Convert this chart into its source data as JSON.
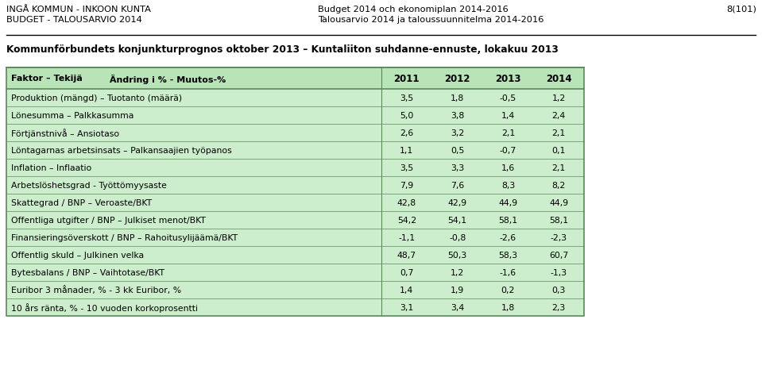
{
  "header_left_line1": "INGÅ KOMMUN - INKOON KUNTA",
  "header_left_line2": "BUDGET - TALOUSARVIO 2014",
  "header_center_line1": "Budget 2014 och ekonomiplan 2014-2016",
  "header_center_line2": "Talousarvio 2014 ja taloussuunnitelma 2014-2016",
  "header_right": "8(101)",
  "subtitle": "Kommunförbundets konjunkturprognos oktober 2013 – Kuntaliiton suhdanne-ennuste, lokakuu 2013",
  "col_header_label": "Faktor – Tekijä",
  "col_header_label2": "Ändring i % - Muutos-%",
  "col_headers_years": [
    "2011",
    "2012",
    "2013",
    "2014"
  ],
  "rows": [
    [
      "Produktion (mängd) – Tuotanto (määrä)",
      "3,5",
      "1,8",
      "-0,5",
      "1,2"
    ],
    [
      "Lönesumma – Palkkasumma",
      "5,0",
      "3,8",
      "1,4",
      "2,4"
    ],
    [
      "Förtjänstnivå – Ansiotaso",
      "2,6",
      "3,2",
      "2,1",
      "2,1"
    ],
    [
      "Löntagarnas arbetsinsats – Palkansaajien työpanos",
      "1,1",
      "0,5",
      "-0,7",
      "0,1"
    ],
    [
      "Inflation – Inflaatio",
      "3,5",
      "3,3",
      "1,6",
      "2,1"
    ],
    [
      "Arbetslöshetsgrad - Työttömyysaste",
      "7,9",
      "7,6",
      "8,3",
      "8,2"
    ],
    [
      "Skattegrad / BNP – Veroaste/BKT",
      "42,8",
      "42,9",
      "44,9",
      "44,9"
    ],
    [
      "Offentliga utgifter / BNP – Julkiset menot/BKT",
      "54,2",
      "54,1",
      "58,1",
      "58,1"
    ],
    [
      "Finansieringsöverskott / BNP – Rahoitusylijäämä/BKT",
      "-1,1",
      "-0,8",
      "-2,6",
      "-2,3"
    ],
    [
      "Offentlig skuld – Julkinen velka",
      "48,7",
      "50,3",
      "58,3",
      "60,7"
    ],
    [
      "Bytesbalans / BNP – Vaihtotase/BKT",
      "0,7",
      "1,2",
      "-1,6",
      "-1,3"
    ],
    [
      "Euribor 3 månader, % - 3 kk Euribor, %",
      "1,4",
      "1,9",
      "0,2",
      "0,3"
    ],
    [
      "10 års ränta, % - 10 vuoden korkoprosentti",
      "3,1",
      "3,4",
      "1,8",
      "2,3"
    ]
  ],
  "table_bg_color": "#cceecc",
  "header_bg_color": "#b8e4b8",
  "border_color": "#5a8a5a",
  "fig_width": 9.59,
  "fig_height": 4.81
}
